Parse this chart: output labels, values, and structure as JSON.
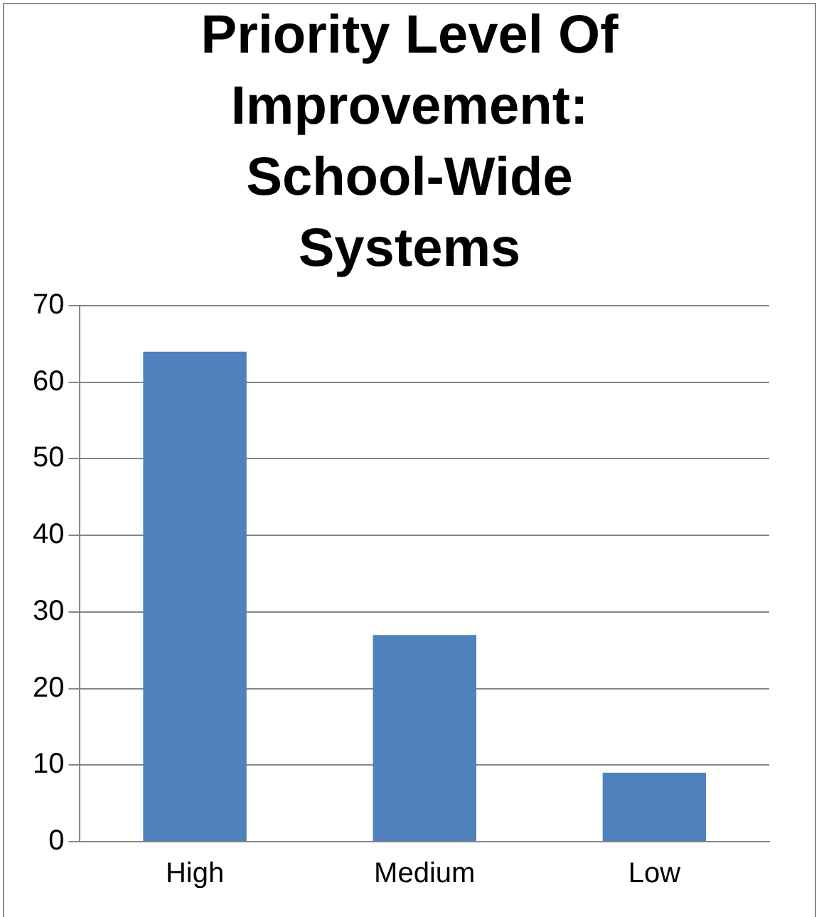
{
  "chart_data": {
    "type": "bar",
    "title": "Priority Level Of Improvement: School-Wide Systems",
    "categories": [
      "High",
      "Medium",
      "Low"
    ],
    "values": [
      64,
      27,
      9
    ],
    "color": "#4f81bd",
    "ylim": [
      0,
      70
    ],
    "yticks": [
      0,
      10,
      20,
      30,
      40,
      50,
      60,
      70
    ],
    "grid": "y",
    "legend": false
  }
}
